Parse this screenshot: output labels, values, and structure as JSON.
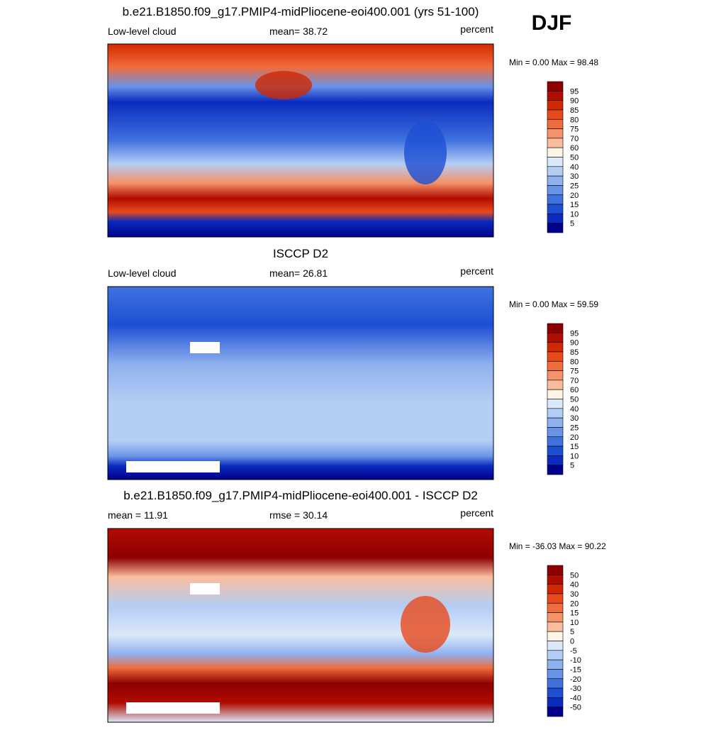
{
  "header": {
    "season": "DJF"
  },
  "colorbar_colors": [
    "#8e0000",
    "#b00c00",
    "#d02800",
    "#e84a1c",
    "#f06c3c",
    "#f5926a",
    "#f9bd9e",
    "#fff4e6",
    "#dbe8fa",
    "#b4cdf4",
    "#8eb0ee",
    "#6893e7",
    "#3f72df",
    "#1d4fd4",
    "#0a2bbd",
    "#00008c"
  ],
  "panels": [
    {
      "title": "b.e21.B1850.f09_g17.PMIP4-midPliocene-eoi400.001 (yrs 51-100)",
      "left": "Low-level cloud",
      "center": "mean=  38.72",
      "right": "percent",
      "range": "Min =   0.00 Max =  98.48",
      "colorbar": {
        "labels": [
          95,
          90,
          85,
          80,
          75,
          70,
          60,
          50,
          40,
          30,
          25,
          20,
          15,
          10,
          5
        ]
      }
    },
    {
      "title": "ISCCP D2",
      "left": "Low-level cloud",
      "center": "mean=  26.81",
      "right": "percent",
      "range": "Min =   0.00 Max =  59.59",
      "colorbar": {
        "labels": [
          95,
          90,
          85,
          80,
          75,
          70,
          60,
          50,
          40,
          30,
          25,
          20,
          15,
          10,
          5
        ]
      }
    },
    {
      "title": "b.e21.B1850.f09_g17.PMIP4-midPliocene-eoi400.001 - ISCCP D2",
      "left": "mean =  11.91",
      "center": "rmse =  30.14",
      "right": "percent",
      "range": "Min = -36.03 Max =  90.22",
      "colorbar": {
        "labels": [
          50,
          40,
          30,
          20,
          15,
          10,
          5,
          0,
          -5,
          -10,
          -15,
          -20,
          -30,
          -40,
          -50
        ]
      }
    }
  ]
}
